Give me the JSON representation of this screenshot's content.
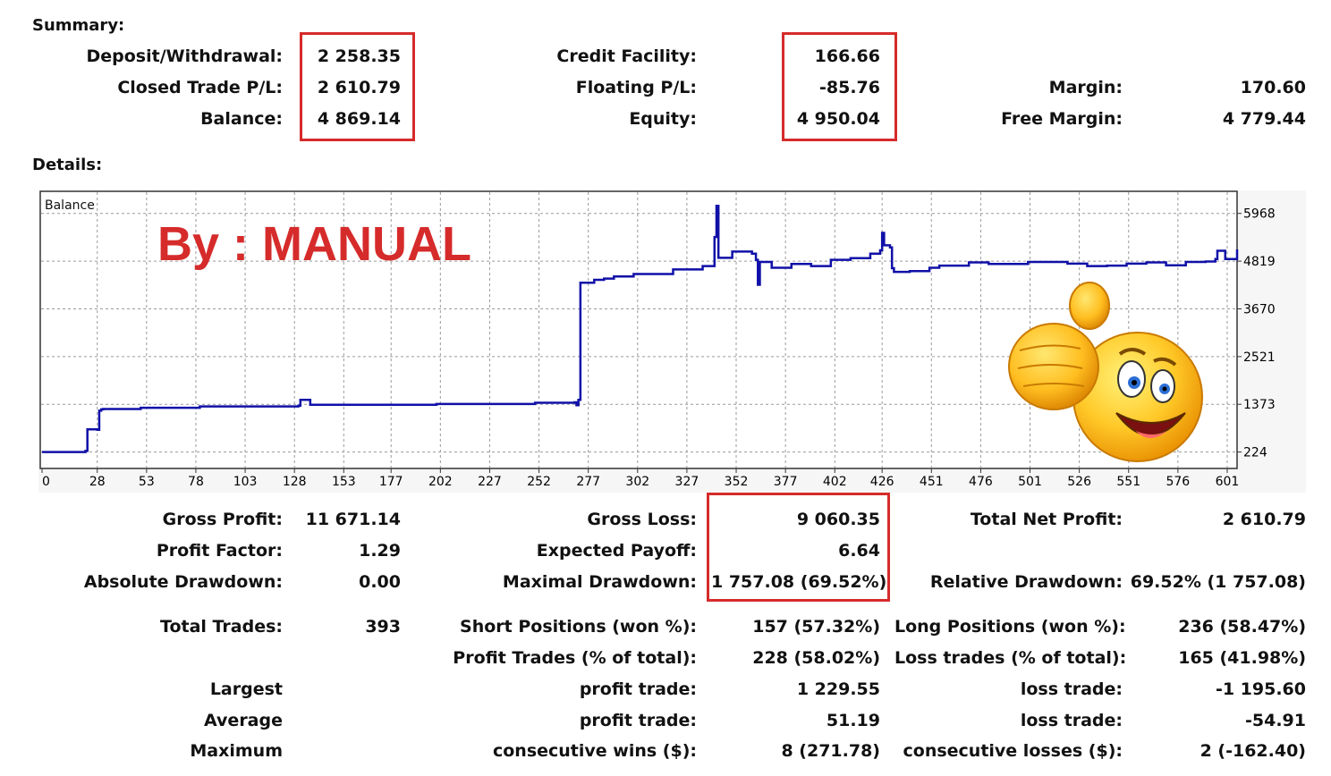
{
  "summary": {
    "heading": "Summary:",
    "deposit_label": "Deposit/Withdrawal:",
    "deposit_value": "2 258.35",
    "closed_label": "Closed Trade P/L:",
    "closed_value": "2 610.79",
    "balance_label": "Balance:",
    "balance_value": "4 869.14",
    "credit_label": "Credit Facility:",
    "credit_value": "166.66",
    "floating_label": "Floating P/L:",
    "floating_value": "-85.76",
    "equity_label": "Equity:",
    "equity_value": "4 950.04",
    "margin_label": "Margin:",
    "margin_value": "170.60",
    "free_margin_label": "Free Margin:",
    "free_margin_value": "4 779.44"
  },
  "details": {
    "heading": "Details:",
    "watermark": "By : MANUAL",
    "rows": [
      {
        "c1l": "Gross Profit:",
        "c1v": "11 671.14",
        "c2l": "Gross Loss:",
        "c2v": "9 060.35",
        "c3l": "Total Net Profit:",
        "c3v": "2 610.79"
      },
      {
        "c1l": "Profit Factor:",
        "c1v": "1.29",
        "c2l": "Expected Payoff:",
        "c2v": "6.64",
        "c3l": "",
        "c3v": ""
      },
      {
        "c1l": "Absolute Drawdown:",
        "c1v": "0.00",
        "c2l": "Maximal Drawdown:",
        "c2v": "1 757.08 (69.52%)",
        "c3l": "Relative Drawdown:",
        "c3v": "69.52% (1 757.08)"
      },
      {
        "c1l": "Total Trades:",
        "c1v": "393",
        "c2l": "Short Positions (won %):",
        "c2v": "157 (57.32%)",
        "c3l": "Long Positions (won %):",
        "c3v": "236 (58.47%)"
      },
      {
        "c1l": "",
        "c1v": "",
        "c2l": "Profit Trades (% of total):",
        "c2v": "228 (58.02%)",
        "c3l": "Loss trades (% of total):",
        "c3v": "165 (41.98%)"
      },
      {
        "c1l": "Largest",
        "c1v": "",
        "c2l": "profit trade:",
        "c2v": "1 229.55",
        "c3l": "loss trade:",
        "c3v": "-1 195.60"
      },
      {
        "c1l": "Average",
        "c1v": "",
        "c2l": "profit trade:",
        "c2v": "51.19",
        "c3l": "loss trade:",
        "c3v": "-54.91"
      },
      {
        "c1l": "Maximum",
        "c1v": "",
        "c2l": "consecutive wins ($):",
        "c2v": "8 (271.78)",
        "c3l": "consecutive losses ($):",
        "c3v": "2 (-162.40)"
      }
    ]
  },
  "colors": {
    "highlight": "#d62b2b",
    "line": "#1010a8",
    "grid": "#9a9a9a"
  },
  "overlay_icon": "thumbs-up-smiley-icon",
  "chart_data": {
    "type": "line",
    "title": "Balance",
    "x_ticks": [
      0,
      28,
      53,
      78,
      103,
      128,
      153,
      177,
      202,
      227,
      252,
      277,
      302,
      327,
      352,
      377,
      402,
      426,
      451,
      476,
      501,
      526,
      551,
      576,
      601
    ],
    "y_ticks": [
      224,
      1373,
      2521,
      3670,
      4819,
      5968
    ],
    "xlim": [
      0,
      606
    ],
    "ylim": [
      0,
      6500
    ],
    "grid": true,
    "series": [
      {
        "x": [
          0,
          22,
          23,
          28,
          29,
          30,
          31,
          50,
          80,
          130,
          131,
          135,
          136,
          200,
          250,
          270,
          271,
          272,
          273,
          280,
          285,
          290,
          300,
          320,
          335,
          340,
          341,
          342,
          343,
          350,
          360,
          362,
          363,
          364,
          370,
          380,
          390,
          400,
          410,
          420,
          425,
          426,
          427,
          430,
          431,
          432,
          440,
          450,
          455,
          470,
          480,
          500,
          510,
          520,
          530,
          540,
          550,
          560,
          570,
          580,
          590,
          595,
          596,
          600,
          606
        ],
        "y": [
          224,
          250,
          770,
          760,
          1220,
          1250,
          1260,
          1290,
          1320,
          1340,
          1480,
          1480,
          1360,
          1380,
          1410,
          1420,
          1350,
          1480,
          4300,
          4370,
          4400,
          4450,
          4510,
          4620,
          4700,
          4700,
          5400,
          6150,
          4900,
          5050,
          5000,
          4850,
          4250,
          4800,
          4660,
          4750,
          4700,
          4850,
          4890,
          5000,
          5080,
          5500,
          5200,
          5150,
          4650,
          4560,
          4580,
          4660,
          4710,
          4790,
          4750,
          4800,
          4800,
          4760,
          4700,
          4710,
          4760,
          4790,
          4720,
          4800,
          4810,
          4870,
          5070,
          4870,
          5100
        ]
      }
    ]
  }
}
